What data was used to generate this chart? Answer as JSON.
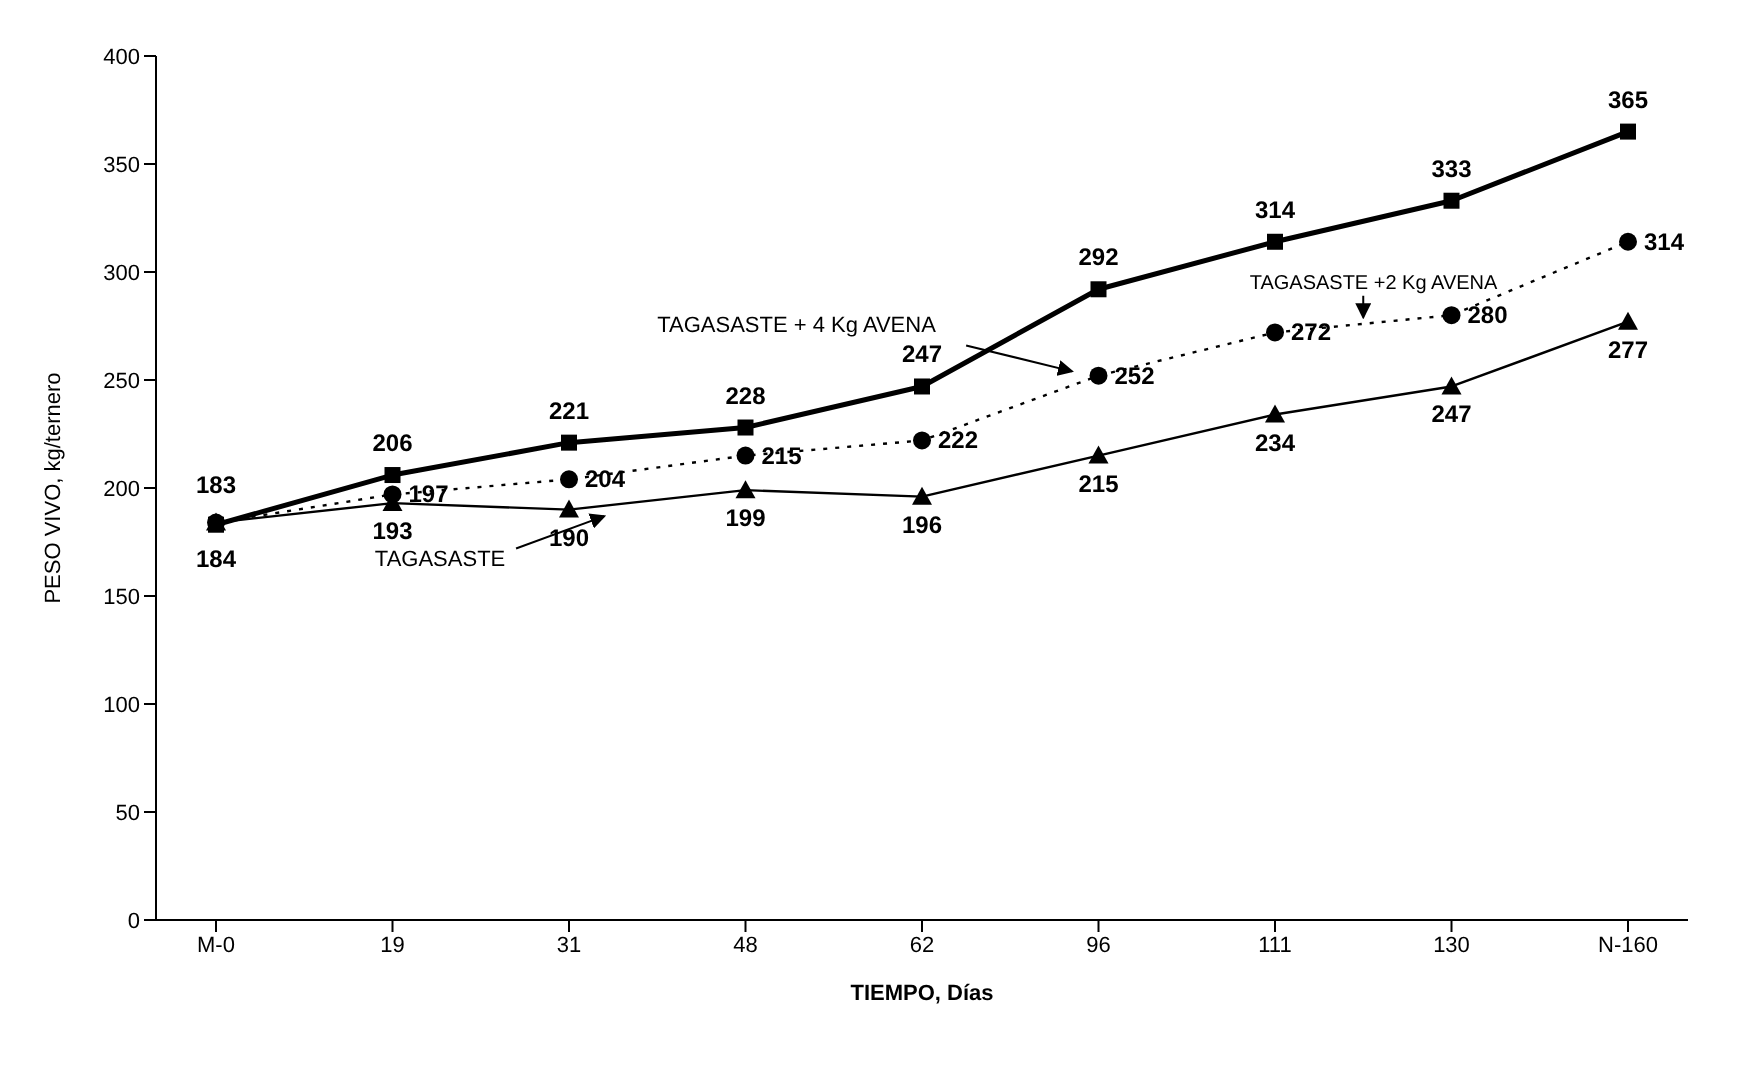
{
  "chart_data": {
    "type": "line",
    "xlabel": "TIEMPO, Días",
    "ylabel": "PESO VIVO, kg/ternero",
    "categories": [
      "M-0",
      "19",
      "31",
      "48",
      "62",
      "96",
      "111",
      "130",
      "N-160"
    ],
    "ylim": [
      0,
      400
    ],
    "yticks": [
      0,
      50,
      100,
      150,
      200,
      250,
      300,
      350,
      400
    ],
    "grid": false,
    "legend": false,
    "series": [
      {
        "name": "TAGASASTE + 4 Kg AVENA",
        "color": "#000000",
        "marker": "square",
        "line_style": "solid",
        "values": [
          183,
          206,
          221,
          228,
          247,
          292,
          314,
          333,
          365
        ],
        "value_labels": [
          "183",
          "206",
          "221",
          "228",
          "247",
          "292",
          "314",
          "333",
          "365"
        ]
      },
      {
        "name": "TAGASASTE +2 Kg AVENA",
        "color": "#000000",
        "marker": "circle",
        "line_style": "dotted",
        "values": [
          184,
          197,
          204,
          215,
          222,
          252,
          272,
          280,
          314
        ],
        "value_labels": [
          null,
          "197",
          "204",
          "215",
          "222",
          "252",
          "272",
          "280",
          "314"
        ]
      },
      {
        "name": "TAGASASTE",
        "color": "#000000",
        "marker": "triangle",
        "line_style": "solid",
        "values": [
          184,
          193,
          190,
          199,
          196,
          215,
          234,
          247,
          277
        ],
        "value_labels": [
          "184",
          "193",
          "190",
          "199",
          "196",
          "215",
          "234",
          "247",
          "277"
        ]
      }
    ]
  }
}
